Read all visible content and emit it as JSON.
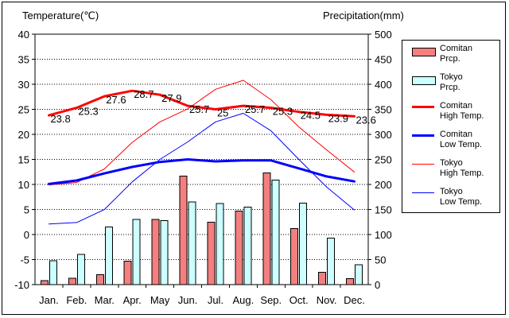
{
  "chart_data": {
    "type": "bar+line",
    "y_left_label": "Temperature(℃)",
    "y_right_label": "Precipitation(mm)",
    "y_left_range": [
      -10,
      40
    ],
    "y_left_ticks": [
      40,
      35,
      30,
      25,
      20,
      15,
      10,
      5,
      0,
      -5,
      -10
    ],
    "y_right_range": [
      0,
      500
    ],
    "y_right_ticks": [
      500,
      450,
      400,
      350,
      300,
      250,
      200,
      150,
      100,
      50,
      0
    ],
    "categories": [
      "Jan.",
      "Feb.",
      "Mar.",
      "Apr.",
      "May",
      "Jun.",
      "Jul.",
      "Aug.",
      "Sep.",
      "Oct.",
      "Nov.",
      "Dec."
    ],
    "bar_series": [
      {
        "name": "Comitan Prcp.",
        "axis": "right",
        "color": "#f47f7f",
        "values": [
          8,
          13,
          20,
          47,
          130,
          217,
          125,
          147,
          223,
          112,
          25,
          12
        ]
      },
      {
        "name": "Tokyo Prcp.",
        "axis": "right",
        "color": "#ccffff",
        "values": [
          48,
          60,
          115,
          130,
          128,
          165,
          162,
          155,
          209,
          163,
          93,
          40
        ]
      }
    ],
    "line_series": [
      {
        "name": "Comitan High Temp.",
        "axis": "left",
        "color": "#ff0000",
        "width": 3,
        "values": [
          23.8,
          25.3,
          27.6,
          28.7,
          27.9,
          25.7,
          25,
          25.7,
          25.3,
          24.5,
          23.9,
          23.6
        ]
      },
      {
        "name": "Comitan Low Temp.",
        "axis": "left",
        "color": "#0000ff",
        "width": 3,
        "values": [
          10.1,
          10.8,
          12.2,
          13.5,
          14.5,
          15.0,
          14.6,
          14.8,
          14.8,
          13.2,
          11.6,
          10.6
        ]
      },
      {
        "name": "Tokyo High Temp.",
        "axis": "left",
        "color": "#ff0000",
        "width": 1,
        "values": [
          9.9,
          10.4,
          13.1,
          18.4,
          22.5,
          25.1,
          29.0,
          30.8,
          26.9,
          21.5,
          16.9,
          12.5
        ]
      },
      {
        "name": "Tokyo Low Temp.",
        "axis": "left",
        "color": "#0000ff",
        "width": 1,
        "values": [
          2.1,
          2.4,
          5.0,
          10.5,
          15.0,
          18.5,
          22.5,
          24.2,
          20.7,
          15.0,
          9.5,
          4.9
        ]
      }
    ],
    "data_labels": [
      "23.8",
      "25.3",
      "27.6",
      "28.7",
      "27.9",
      "25.7",
      "25",
      "25.7",
      "25.3",
      "24.5",
      "23.9",
      "23.6"
    ],
    "legend_placement": "right"
  },
  "legend": [
    {
      "line1": "Comitan",
      "line2": "Prcp.",
      "kind": "bar",
      "color": "#f47f7f"
    },
    {
      "line1": "Tokyo",
      "line2": "Prcp.",
      "kind": "bar",
      "color": "#ccffff"
    },
    {
      "line1": "Comitan",
      "line2": "High Temp.",
      "kind": "line",
      "color": "#ff0000",
      "thick": true
    },
    {
      "line1": "Comitan",
      "line2": "Low Temp.",
      "kind": "line",
      "color": "#0000ff",
      "thick": true
    },
    {
      "line1": "Tokyo",
      "line2": "High Temp.",
      "kind": "line",
      "color": "#ff0000",
      "thick": false
    },
    {
      "line1": "Tokyo",
      "line2": "Low Temp.",
      "kind": "line",
      "color": "#0000ff",
      "thick": false
    }
  ]
}
